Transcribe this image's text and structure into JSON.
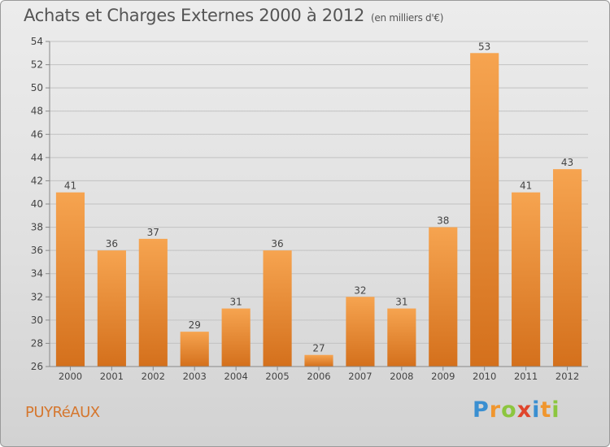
{
  "title": "Achats et Charges Externes 2000 à 2012",
  "subtitle": "(en milliers d'€)",
  "commune": "PUYRéAUX",
  "logo": {
    "letters": [
      "P",
      "r",
      "o",
      "x",
      "i",
      "t",
      "i"
    ],
    "colors": [
      "#3a8fd1",
      "#f0962e",
      "#8cc63f",
      "#e0452c",
      "#3a8fd1",
      "#f0962e",
      "#8cc63f"
    ]
  },
  "chart_data": {
    "type": "bar",
    "categories": [
      "2000",
      "2001",
      "2002",
      "2003",
      "2004",
      "2005",
      "2006",
      "2007",
      "2008",
      "2009",
      "2010",
      "2011",
      "2012"
    ],
    "values": [
      41,
      36,
      37,
      29,
      31,
      36,
      27,
      32,
      31,
      38,
      53,
      41,
      43
    ],
    "ylim": [
      26,
      54
    ],
    "yticks": [
      26,
      28,
      30,
      32,
      34,
      36,
      38,
      40,
      42,
      44,
      46,
      48,
      50,
      52,
      54
    ],
    "grid": true,
    "legend": "none",
    "bar_color": "#f0962e"
  }
}
